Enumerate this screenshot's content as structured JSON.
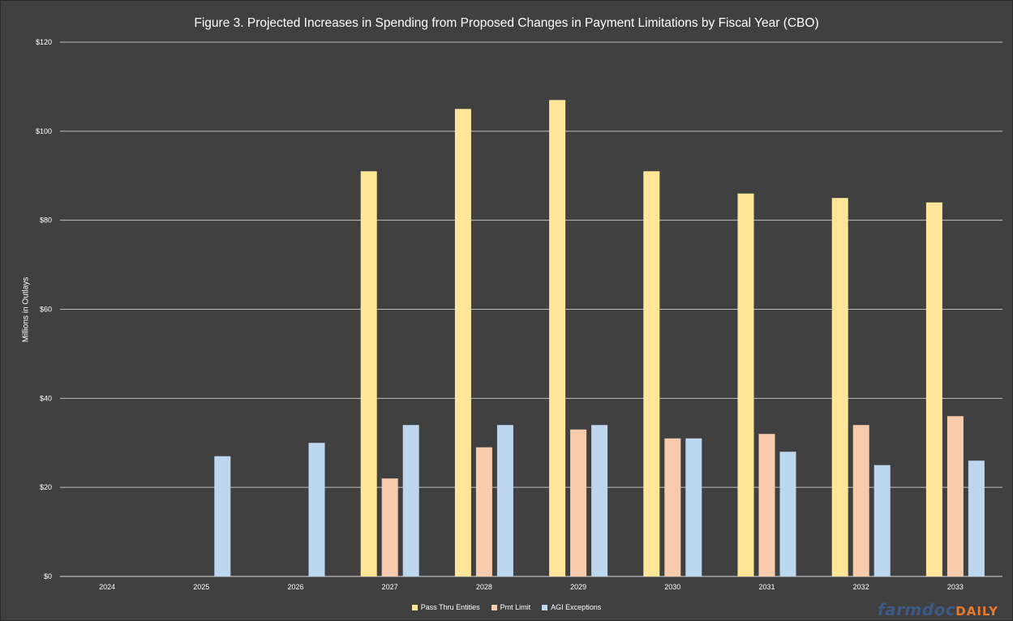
{
  "chart_data": {
    "type": "bar",
    "title": "Figure 3. Projected Increases in Spending from Proposed Changes in Payment Limitations by Fiscal Year (CBO)",
    "ylabel": "Millions in Outlays",
    "xlabel": "",
    "ylim": [
      0,
      120
    ],
    "yticks": [
      0,
      20,
      40,
      60,
      80,
      100,
      120
    ],
    "ytick_labels": [
      "$0",
      "$20",
      "$40",
      "$60",
      "$80",
      "$100",
      "$120"
    ],
    "categories": [
      "2024",
      "2025",
      "2026",
      "2027",
      "2028",
      "2029",
      "2030",
      "2031",
      "2032",
      "2033"
    ],
    "series": [
      {
        "name": "Pass Thru Entities",
        "color": "#ffe699",
        "values": [
          0,
          0,
          0,
          91,
          105,
          107,
          91,
          86,
          85,
          84
        ]
      },
      {
        "name": "Pmt Limit",
        "color": "#f8cbad",
        "values": [
          0,
          0,
          0,
          22,
          29,
          33,
          31,
          32,
          34,
          36
        ]
      },
      {
        "name": "AGI Exceptions",
        "color": "#bdd7ee",
        "values": [
          0,
          27,
          30,
          34,
          34,
          34,
          31,
          28,
          25,
          26
        ]
      }
    ],
    "grid": true,
    "legend_position": "bottom"
  },
  "logo": {
    "part1": "farmdoc",
    "part2": "DAILY"
  }
}
